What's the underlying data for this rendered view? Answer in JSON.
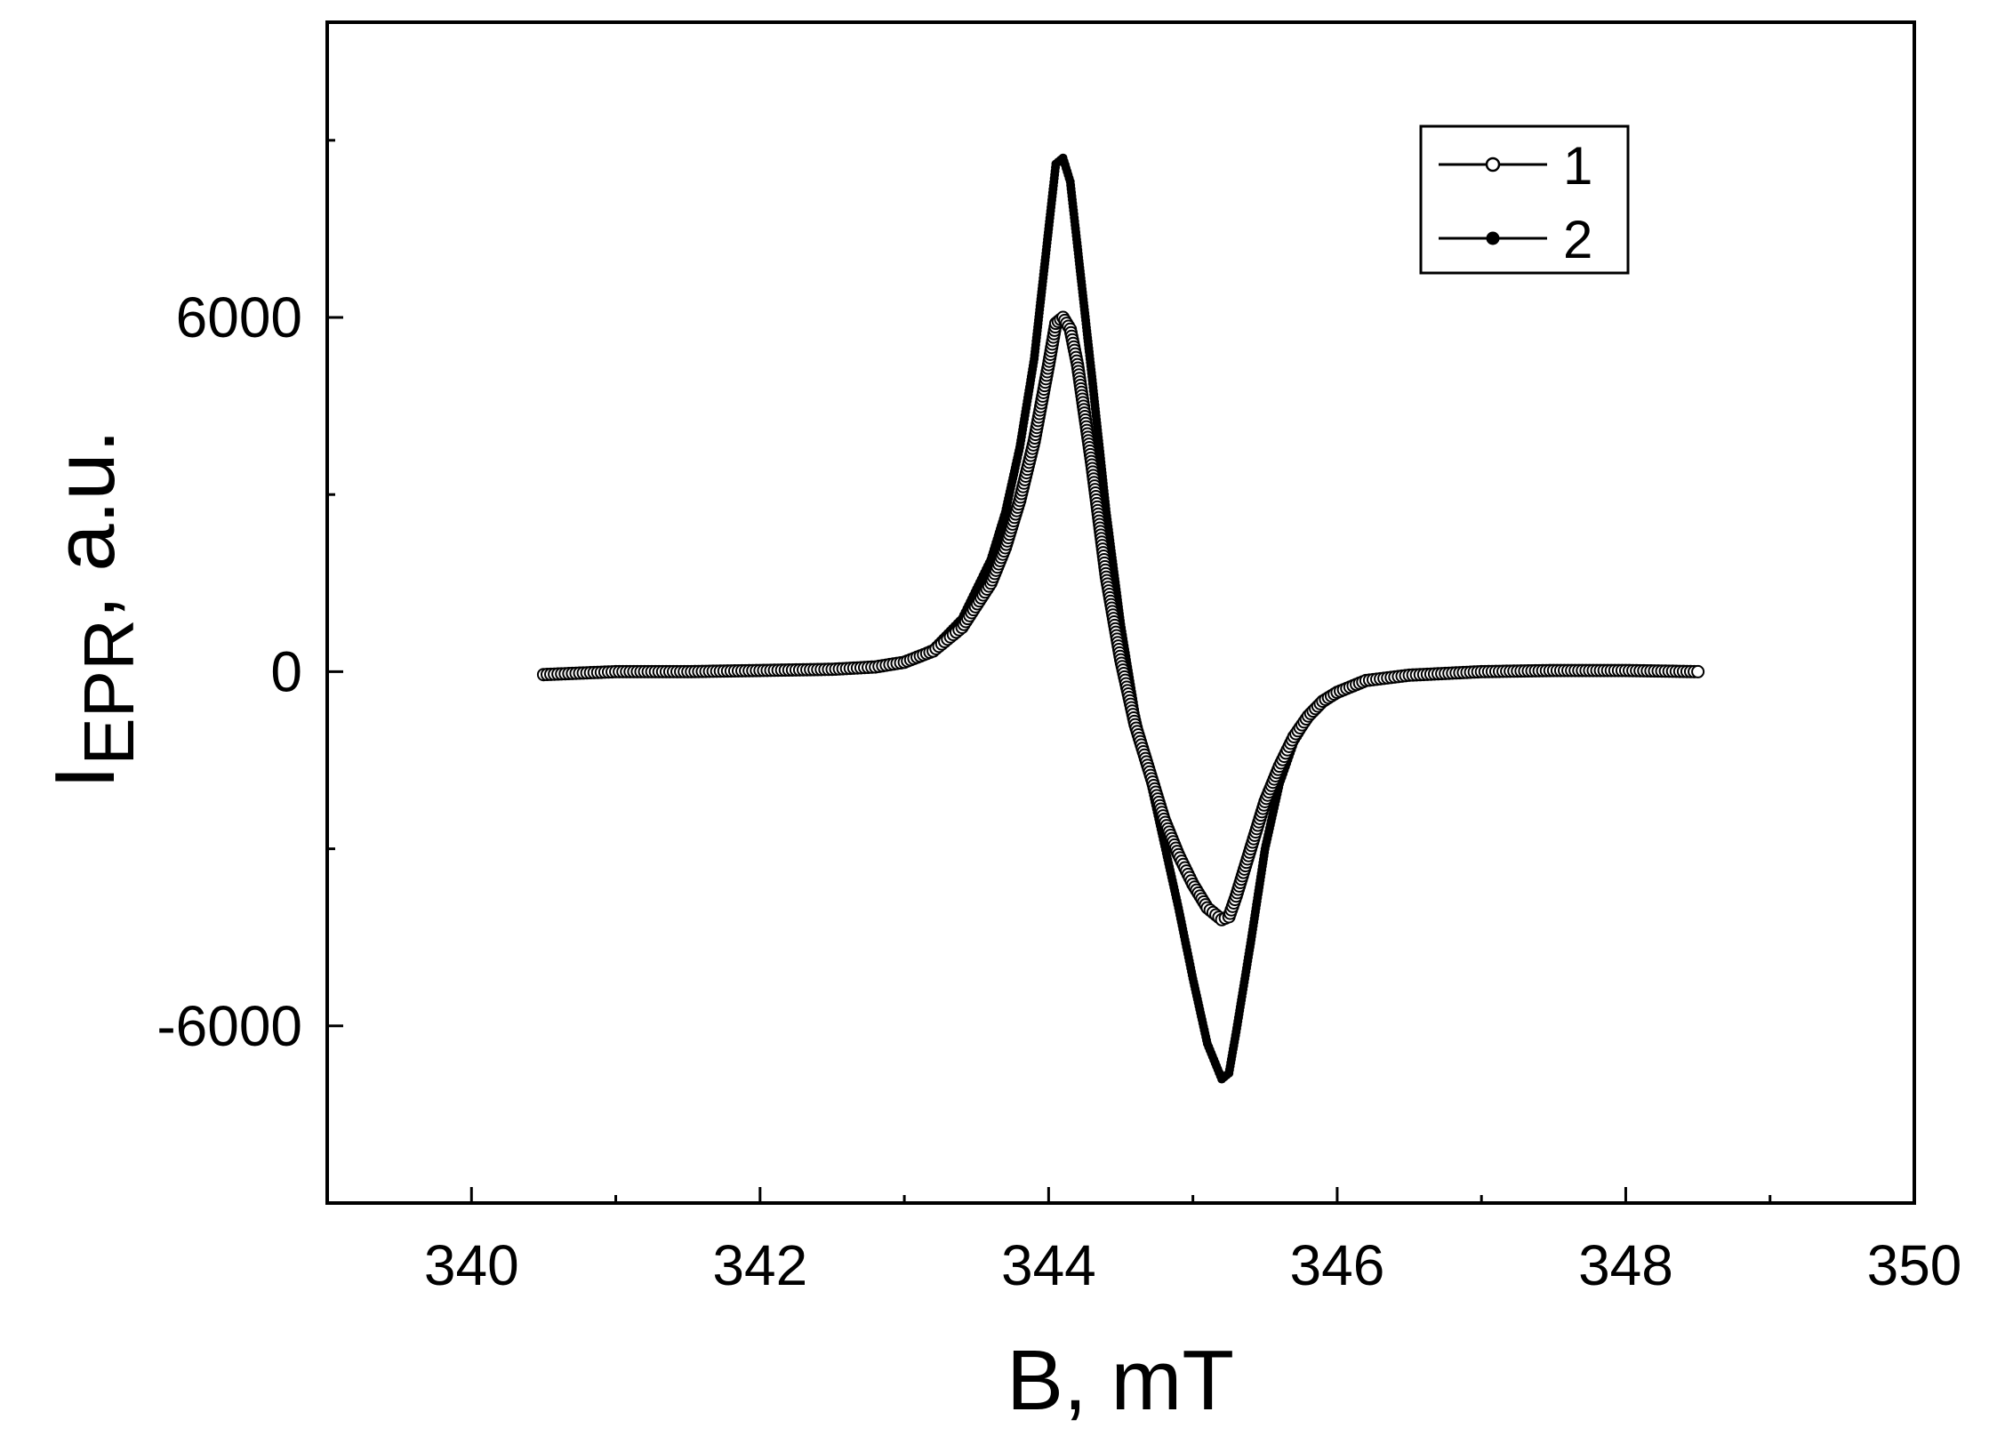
{
  "chart_data": {
    "type": "scatter",
    "title": "",
    "xlabel": "B, mT",
    "ylabel": {
      "base": "I",
      "subscript": "EPR",
      "suffix": ", a.u."
    },
    "xlim": [
      339,
      350
    ],
    "ylim": [
      -9000,
      11000
    ],
    "xticks": [
      340,
      342,
      344,
      346,
      348,
      350
    ],
    "yticks": [
      -6000,
      0,
      6000
    ],
    "grid": false,
    "legend_position": "top-right",
    "series": [
      {
        "name": "1",
        "marker": "open-circle",
        "color": "#000000",
        "points": [
          [
            340.5,
            -50
          ],
          [
            341.0,
            0
          ],
          [
            341.5,
            0
          ],
          [
            342.0,
            20
          ],
          [
            342.5,
            40
          ],
          [
            342.8,
            80
          ],
          [
            343.0,
            160
          ],
          [
            343.2,
            350
          ],
          [
            343.4,
            750
          ],
          [
            343.6,
            1500
          ],
          [
            343.7,
            2100
          ],
          [
            343.8,
            2900
          ],
          [
            343.9,
            3900
          ],
          [
            344.0,
            5200
          ],
          [
            344.05,
            5900
          ],
          [
            344.1,
            6000
          ],
          [
            344.15,
            5800
          ],
          [
            344.2,
            5200
          ],
          [
            344.3,
            3500
          ],
          [
            344.4,
            1600
          ],
          [
            344.5,
            200
          ],
          [
            344.6,
            -900
          ],
          [
            344.7,
            -1700
          ],
          [
            344.8,
            -2500
          ],
          [
            344.9,
            -3100
          ],
          [
            345.0,
            -3600
          ],
          [
            345.1,
            -4000
          ],
          [
            345.2,
            -4200
          ],
          [
            345.25,
            -4150
          ],
          [
            345.3,
            -3800
          ],
          [
            345.4,
            -3000
          ],
          [
            345.5,
            -2200
          ],
          [
            345.6,
            -1600
          ],
          [
            345.7,
            -1100
          ],
          [
            345.8,
            -750
          ],
          [
            345.9,
            -500
          ],
          [
            346.0,
            -350
          ],
          [
            346.2,
            -150
          ],
          [
            346.5,
            -60
          ],
          [
            347.0,
            0
          ],
          [
            347.5,
            20
          ],
          [
            348.0,
            20
          ],
          [
            348.5,
            0
          ]
        ]
      },
      {
        "name": "2",
        "marker": "filled-dot",
        "color": "#000000",
        "points": [
          [
            340.5,
            -60
          ],
          [
            341.0,
            -20
          ],
          [
            341.5,
            0
          ],
          [
            342.0,
            20
          ],
          [
            342.5,
            40
          ],
          [
            342.8,
            100
          ],
          [
            343.0,
            180
          ],
          [
            343.2,
            400
          ],
          [
            343.4,
            900
          ],
          [
            343.6,
            1900
          ],
          [
            343.7,
            2700
          ],
          [
            343.8,
            3800
          ],
          [
            343.9,
            5300
          ],
          [
            344.0,
            7500
          ],
          [
            344.05,
            8600
          ],
          [
            344.1,
            8700
          ],
          [
            344.15,
            8300
          ],
          [
            344.2,
            7200
          ],
          [
            344.3,
            5000
          ],
          [
            344.4,
            2700
          ],
          [
            344.5,
            800
          ],
          [
            344.6,
            -700
          ],
          [
            344.7,
            -1800
          ],
          [
            344.8,
            -2900
          ],
          [
            344.9,
            -4000
          ],
          [
            345.0,
            -5200
          ],
          [
            345.1,
            -6300
          ],
          [
            345.2,
            -6900
          ],
          [
            345.25,
            -6800
          ],
          [
            345.3,
            -6100
          ],
          [
            345.4,
            -4600
          ],
          [
            345.5,
            -3000
          ],
          [
            345.6,
            -1900
          ],
          [
            345.7,
            -1200
          ],
          [
            345.8,
            -800
          ],
          [
            345.9,
            -550
          ],
          [
            346.0,
            -380
          ],
          [
            346.2,
            -170
          ],
          [
            346.5,
            -70
          ],
          [
            347.0,
            0
          ],
          [
            347.5,
            20
          ],
          [
            348.0,
            30
          ],
          [
            348.5,
            0
          ]
        ]
      }
    ]
  }
}
